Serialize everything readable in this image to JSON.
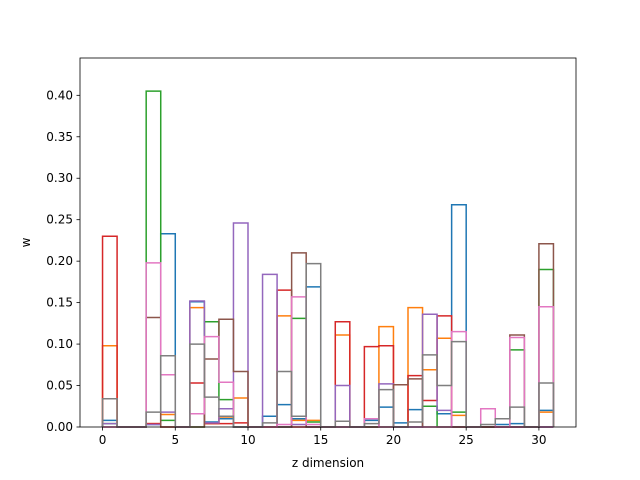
{
  "chart_data": {
    "type": "step-histogram",
    "title": "",
    "xlabel": "z dimension",
    "ylabel": "w",
    "xlim": [
      -1.55,
      32.55
    ],
    "ylim": [
      0,
      0.445
    ],
    "bins": [
      0,
      1,
      2,
      3,
      4,
      5,
      6,
      7,
      8,
      9,
      10,
      11,
      12,
      13,
      14,
      15,
      16,
      17,
      18,
      19,
      20,
      21,
      22,
      23,
      24,
      25,
      26,
      27,
      28,
      29,
      30,
      31
    ],
    "xticks": [
      "0",
      "5",
      "10",
      "15",
      "20",
      "25",
      "30"
    ],
    "yticks": [
      "0.00",
      "0.05",
      "0.10",
      "0.15",
      "0.20",
      "0.25",
      "0.30",
      "0.35",
      "0.40"
    ],
    "grid": false,
    "legend": "none",
    "colors": [
      "#1f77b4",
      "#ff7f0e",
      "#2ca02c",
      "#d62728",
      "#9467bd",
      "#8c564b",
      "#e377c2",
      "#7f7f7f"
    ],
    "series": [
      {
        "values": [
          0.008,
          0,
          0,
          0.003,
          0.233,
          0,
          0.151,
          0.006,
          0.01,
          0,
          0,
          0.013,
          0.027,
          0.01,
          0.169,
          0,
          0,
          0,
          0.008,
          0.024,
          0.005,
          0.021,
          0.025,
          0.016,
          0.268,
          0,
          0,
          0.003,
          0.004,
          0,
          0.02
        ]
      },
      {
        "values": [
          0.098,
          0,
          0,
          0.004,
          0.015,
          0,
          0.144,
          0.004,
          0.012,
          0.035,
          0,
          0,
          0.134,
          0.008,
          0.008,
          0,
          0.111,
          0,
          0,
          0.121,
          0,
          0.144,
          0.069,
          0.107,
          0.014,
          0,
          0,
          0,
          0,
          0,
          0.018
        ]
      },
      {
        "values": [
          0.004,
          0,
          0,
          0.405,
          0.008,
          0,
          0,
          0.127,
          0.033,
          0,
          0,
          0,
          0,
          0.131,
          0.006,
          0,
          0,
          0,
          0,
          0,
          0,
          0,
          0.025,
          0,
          0.018,
          0,
          0,
          0,
          0.093,
          0,
          0.19
        ]
      },
      {
        "values": [
          0.23,
          0,
          0,
          0.004,
          0,
          0,
          0.053,
          0.004,
          0.004,
          0.005,
          0,
          0,
          0.165,
          0,
          0,
          0,
          0.127,
          0,
          0.097,
          0.098,
          0,
          0.062,
          0.032,
          0.134,
          0,
          0,
          0,
          0,
          0,
          0,
          0
        ]
      },
      {
        "values": [
          0.004,
          0,
          0,
          0.003,
          0.018,
          0,
          0.152,
          0.005,
          0.022,
          0.246,
          0,
          0.184,
          0,
          0.003,
          0,
          0,
          0.05,
          0,
          0,
          0.052,
          0,
          0,
          0.136,
          0.02,
          0,
          0,
          0,
          0,
          0,
          0,
          0
        ]
      },
      {
        "values": [
          0,
          0,
          0,
          0.132,
          0,
          0,
          0,
          0.082,
          0.13,
          0.067,
          0,
          0,
          0,
          0.21,
          0,
          0,
          0,
          0,
          0,
          0,
          0.051,
          0.058,
          0,
          0,
          0,
          0,
          0,
          0,
          0.111,
          0,
          0.221
        ]
      },
      {
        "values": [
          0,
          0,
          0,
          0.198,
          0.063,
          0,
          0.016,
          0.109,
          0.054,
          0,
          0,
          0,
          0.003,
          0.157,
          0.003,
          0,
          0,
          0,
          0.01,
          0,
          0,
          0,
          0,
          0,
          0.115,
          0,
          0.022,
          0,
          0.108,
          0,
          0.145
        ]
      },
      {
        "values": [
          0.034,
          0,
          0,
          0.018,
          0.086,
          0,
          0.1,
          0.036,
          0.013,
          0,
          0,
          0.005,
          0.067,
          0.013,
          0.197,
          0,
          0.007,
          0,
          0.004,
          0.045,
          0,
          0.006,
          0.087,
          0.05,
          0.103,
          0,
          0.003,
          0.01,
          0.024,
          0,
          0.053
        ]
      }
    ]
  }
}
